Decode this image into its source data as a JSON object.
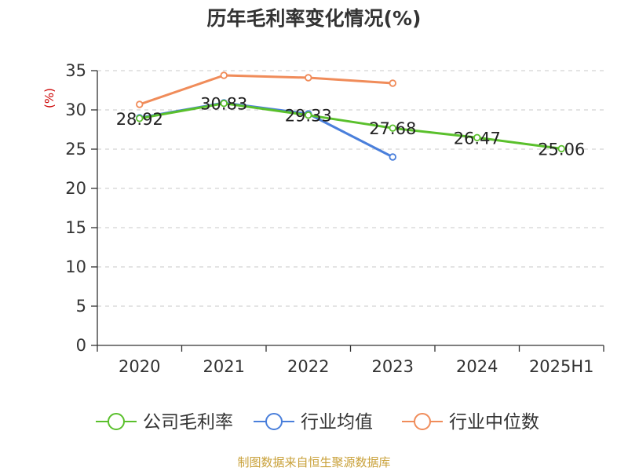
{
  "title": "历年毛利率变化情况(%)",
  "source": "制图数据来自恒生聚源数据库",
  "chart_data": {
    "type": "line",
    "title": "历年毛利率变化情况(%)",
    "xlabel": "",
    "ylabel": "(%)",
    "categories": [
      "2020",
      "2021",
      "2022",
      "2023",
      "2024",
      "2025H1"
    ],
    "ylim": [
      0,
      35
    ],
    "yticks": [
      0,
      5,
      10,
      15,
      20,
      25,
      30,
      35
    ],
    "grid": true,
    "legend_position": "bottom",
    "series": [
      {
        "name": "公司毛利率",
        "color": "#5ac02c",
        "values": [
          28.92,
          30.83,
          29.33,
          27.68,
          26.47,
          25.06
        ],
        "labels": [
          "28.92",
          "30.83",
          "29.33",
          "27.68",
          "26.47",
          "25.06"
        ]
      },
      {
        "name": "行业均值",
        "color": "#4a7fdb",
        "values": [
          29.0,
          30.9,
          29.5,
          24.0,
          null,
          null
        ]
      },
      {
        "name": "行业中位数",
        "color": "#f08c5a",
        "values": [
          30.7,
          34.4,
          34.1,
          33.4,
          null,
          null
        ]
      }
    ]
  }
}
